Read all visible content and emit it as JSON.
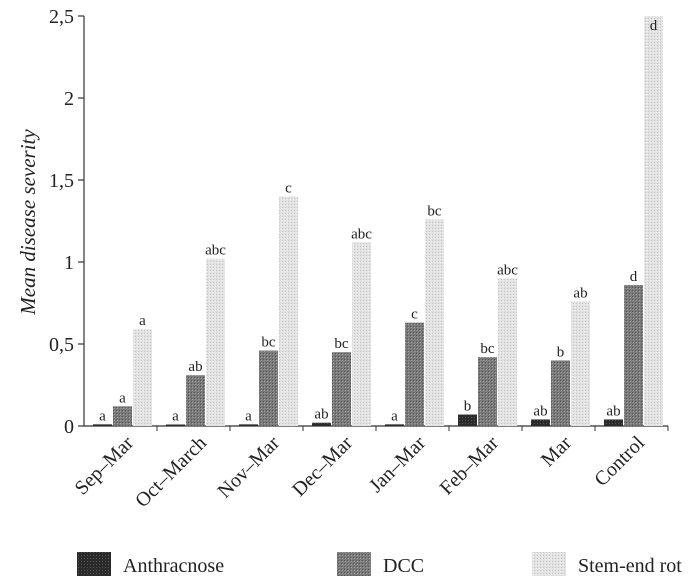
{
  "chart_data": {
    "type": "bar",
    "ylabel": "Mean disease severity",
    "xlabel": "",
    "ylim": [
      0,
      2.5
    ],
    "yticks": [
      {
        "value": 0,
        "label": "0"
      },
      {
        "value": 0.5,
        "label": "0,5"
      },
      {
        "value": 1,
        "label": "1"
      },
      {
        "value": 1.5,
        "label": "1,5"
      },
      {
        "value": 2,
        "label": "2"
      },
      {
        "value": 2.5,
        "label": "2,5"
      }
    ],
    "categories": [
      "Sep–Mar",
      "Oct–March",
      "Nov–Mar",
      "Dec–Mar",
      "Jan–Mar",
      "Feb–Mar",
      "Mar",
      "Control"
    ],
    "series": [
      {
        "name": "Anthracnose",
        "color": "#2b2b2b",
        "values": [
          0.01,
          0.005,
          0.01,
          0.02,
          0.01,
          0.07,
          0.04,
          0.04
        ],
        "labels": [
          "a",
          "a",
          "a",
          "ab",
          "a",
          "b",
          "ab",
          "ab"
        ]
      },
      {
        "name": "DCC",
        "color": "#7d7d7d",
        "values": [
          0.12,
          0.31,
          0.46,
          0.45,
          0.63,
          0.42,
          0.4,
          0.86
        ],
        "labels": [
          "a",
          "ab",
          "bc",
          "bc",
          "c",
          "bc",
          "b",
          "d"
        ]
      },
      {
        "name": "Stem-end rot",
        "color": "#d9d9d9",
        "values": [
          0.59,
          1.02,
          1.4,
          1.12,
          1.26,
          0.9,
          0.76,
          2.5
        ],
        "labels": [
          "a",
          "abc",
          "c",
          "abc",
          "bc",
          "abc",
          "ab",
          "d"
        ]
      }
    ],
    "legend": {
      "position": "bottom"
    }
  }
}
